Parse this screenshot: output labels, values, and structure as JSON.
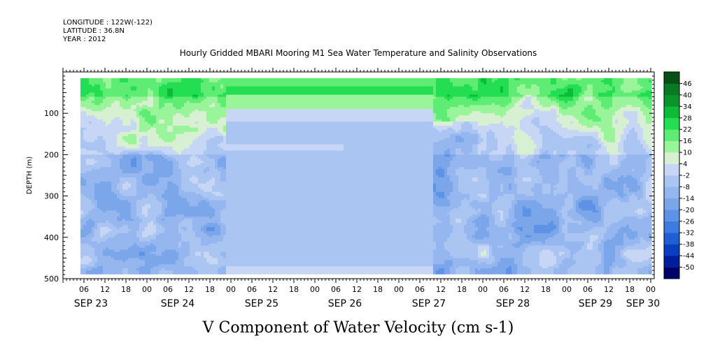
{
  "header": {
    "longitude": "LONGITUDE : 122W(-122)",
    "latitude": "LATITUDE : 36.8N",
    "year": "YEAR : 2012"
  },
  "chart_data": {
    "type": "heatmap",
    "title": "Hourly Gridded MBARI Mooring M1 Sea Water Temperature and Salinity Observations",
    "subtitle": "",
    "xlabel": "",
    "ylabel": "DEPTH (m)",
    "variable_label": "V Component of Water Velocity (cm s-1)",
    "x_hour_ticks": [
      "06",
      "12",
      "18",
      "00",
      "06",
      "12",
      "18",
      "00",
      "06",
      "12",
      "18",
      "00",
      "06",
      "12",
      "18",
      "00",
      "06",
      "12",
      "18",
      "00",
      "06",
      "12",
      "18",
      "00",
      "06",
      "12",
      "18",
      "00"
    ],
    "x_day_labels": [
      "SEP 23",
      "SEP 24",
      "SEP 25",
      "SEP 26",
      "SEP 27",
      "SEP 28",
      "SEP 29",
      "SEP 30"
    ],
    "y_ticks": [
      "100",
      "200",
      "300",
      "400",
      "500"
    ],
    "ylim": [
      500,
      0
    ],
    "data_extent": {
      "start": "2012-09-23 05:00",
      "end": "2012-09-30 00:00",
      "depth_min": 15,
      "depth_max": 485
    },
    "colorbar": {
      "levels": [
        "-50",
        "-44",
        "-38",
        "-32",
        "-26",
        "-20",
        "-14",
        "-8",
        "-2",
        "4",
        "10",
        "16",
        "22",
        "28",
        "34",
        "40",
        "46"
      ],
      "colors": [
        "#00006b",
        "#001e9a",
        "#0a3ec2",
        "#1f5fd6",
        "#3d7be0",
        "#5d92e6",
        "#7ba6ea",
        "#95b6ee",
        "#abc5f2",
        "#c7d6f5",
        "#d8f0d2",
        "#9af59a",
        "#5eec74",
        "#22de50",
        "#0cbc36",
        "#09952a",
        "#087a22",
        "#064f16"
      ]
    },
    "grid": false,
    "legend": "right"
  }
}
